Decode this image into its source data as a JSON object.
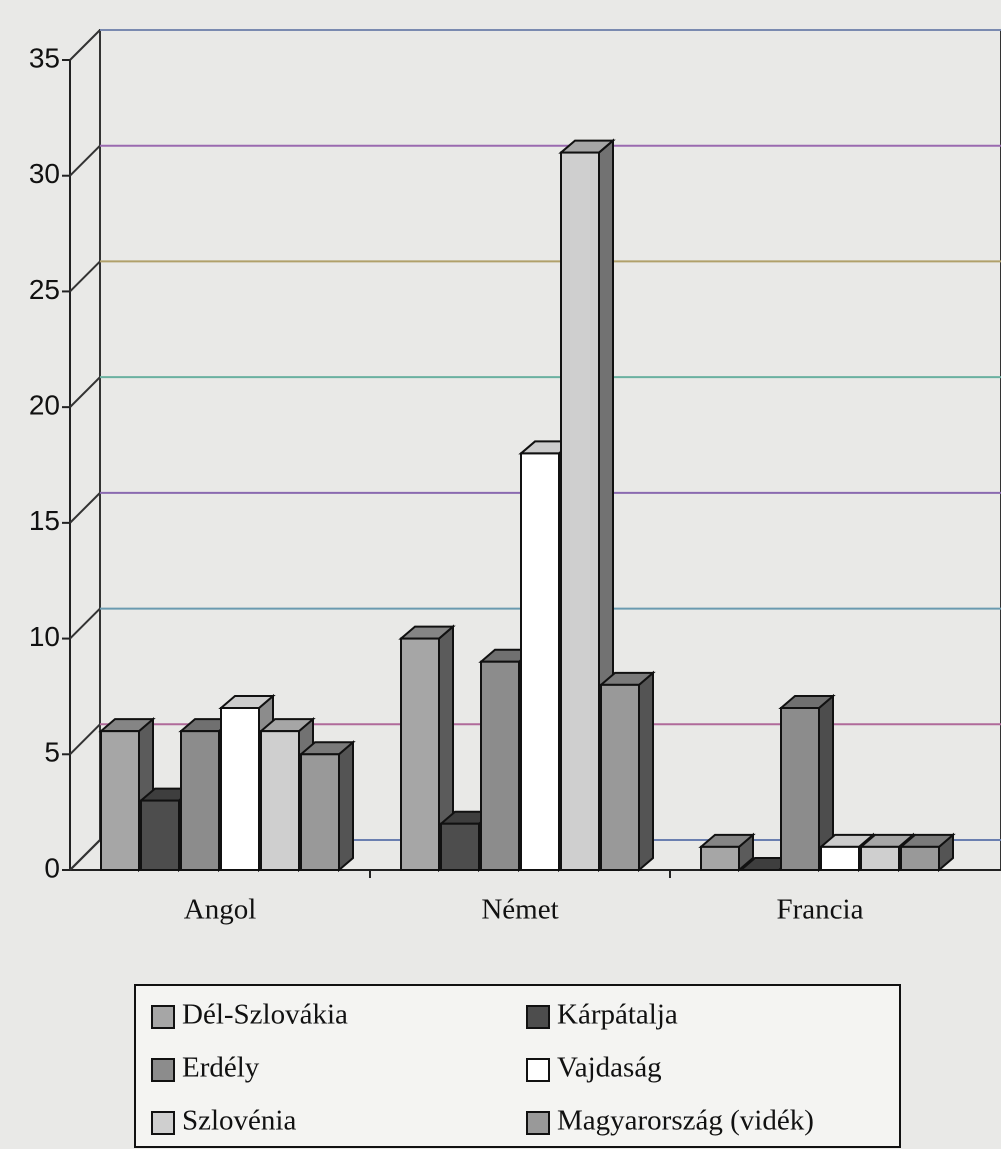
{
  "chart_data": {
    "type": "bar3d",
    "categories": [
      "Angol",
      "Német",
      "Francia"
    ],
    "series": [
      {
        "name": "Dél-Szlovákia",
        "color": "#a6a6a6",
        "values": [
          6,
          10,
          1
        ]
      },
      {
        "name": "Kárpátalja",
        "color": "#4d4d4d",
        "values": [
          3,
          2,
          0
        ]
      },
      {
        "name": "Erdély",
        "color": "#8c8c8c",
        "values": [
          6,
          9,
          7
        ]
      },
      {
        "name": "Vajdaság",
        "color": "#ffffff",
        "values": [
          7,
          18,
          1
        ]
      },
      {
        "name": "Szlovénia",
        "color": "#cfcfcf",
        "values": [
          6,
          31,
          1
        ]
      },
      {
        "name": "Magyarország (vidék)",
        "color": "#999999",
        "values": [
          5,
          8,
          1
        ]
      }
    ],
    "ylim": [
      0,
      35
    ],
    "yticks": [
      0,
      5,
      10,
      15,
      20,
      25,
      30,
      35
    ],
    "grid": true
  }
}
